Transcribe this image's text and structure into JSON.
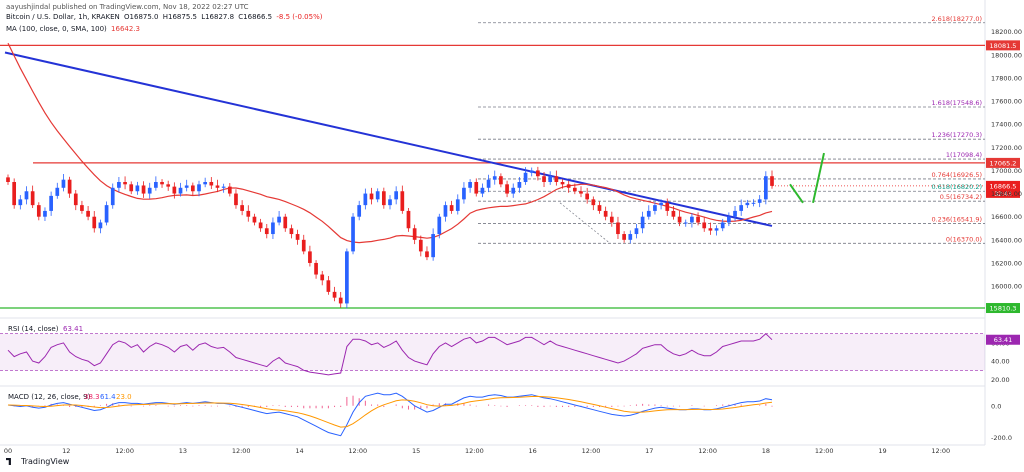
{
  "header": {
    "published": "aayushjindal published on TradingView.com, Nov 18, 2022 02:27 UTC",
    "symbol": "Bitcoin / U.S. Dollar, 1h, KRAKEN",
    "ohlc": {
      "o": "O16875.0",
      "h": "H16875.5",
      "l": "L16827.8",
      "c": "C16866.5",
      "chg": "-8.5 (-0.05%)"
    },
    "ma_label": "MA (100, close, 0, SMA, 100)",
    "ma_value": "16642.3"
  },
  "rsi": {
    "label": "RSI (14, close)",
    "value": "63.41",
    "ticks": [
      "60.00",
      "40.00",
      "20.00"
    ]
  },
  "macd": {
    "label": "MACD (12, 26, close, 9)",
    "values": [
      "38.3",
      "61.4",
      "23.0"
    ],
    "ticks": [
      "0.0",
      "-200.0"
    ]
  },
  "footer": {
    "brand": "TradingView"
  },
  "colors": {
    "up": "#2962ff",
    "down": "#e91e1e",
    "ma": "#e53935",
    "trend": "#2433d6",
    "green": "#2eb82e",
    "rsi": "#9c27b0",
    "macd": "#2962ff",
    "signal": "#ff9800"
  },
  "chart_data": {
    "type": "candlestick",
    "y_ticks": [
      "18200.00",
      "18000.00",
      "17800.00",
      "17600.00",
      "17400.00",
      "17200.00",
      "17000.00",
      "16800.00",
      "16600.00",
      "16400.00",
      "16200.00",
      "16000.00"
    ],
    "x_ticks": [
      "00",
      "12",
      "12:00",
      "13",
      "12:00",
      "14",
      "12:00",
      "15",
      "12:00",
      "16",
      "12:00",
      "17",
      "12:00",
      "18",
      "12:00",
      "19",
      "12:00"
    ],
    "horizontal_lines": [
      {
        "value": 18081.5,
        "label": "18081.5",
        "color": "#e53935"
      },
      {
        "value": 17065.2,
        "label": "17065.2",
        "color": "#e53935"
      },
      {
        "value": 15810.3,
        "label": "15810.3",
        "color": "#2eb82e"
      }
    ],
    "last_price": {
      "value": 16866.5,
      "label": "16866.5",
      "countdown": "32:43"
    },
    "fib_levels": [
      {
        "ratio": "2.618",
        "price": "18277.0",
        "value": 18277.0
      },
      {
        "ratio": "1.618",
        "price": "17548.6",
        "value": 17548.6
      },
      {
        "ratio": "1.236",
        "price": "17270.3",
        "value": 17270.3
      },
      {
        "ratio": "1",
        "price": "17098.4",
        "value": 17098.4
      },
      {
        "ratio": "0.764",
        "price": "16926.5",
        "value": 16926.5
      },
      {
        "ratio": "0.618",
        "price": "16820.2",
        "value": 16820.2
      },
      {
        "ratio": "0.5",
        "price": "16734.2",
        "value": 16734.2
      },
      {
        "ratio": "0.236",
        "price": "16541.9",
        "value": 16541.9
      },
      {
        "ratio": "0",
        "price": "16370.0",
        "value": 16370.0
      }
    ],
    "candles_close": [
      16900,
      16700,
      16750,
      16820,
      16700,
      16600,
      16650,
      16780,
      16850,
      16920,
      16800,
      16700,
      16650,
      16600,
      16500,
      16550,
      16700,
      16850,
      16900,
      16880,
      16820,
      16870,
      16800,
      16850,
      16900,
      16880,
      16860,
      16800,
      16850,
      16870,
      16820,
      16880,
      16900,
      16870,
      16850,
      16860,
      16800,
      16700,
      16650,
      16600,
      16550,
      16500,
      16450,
      16550,
      16600,
      16500,
      16450,
      16400,
      16300,
      16200,
      16100,
      16050,
      15950,
      15900,
      15850,
      16300,
      16600,
      16700,
      16800,
      16750,
      16820,
      16700,
      16750,
      16820,
      16650,
      16500,
      16400,
      16300,
      16250,
      16450,
      16600,
      16700,
      16650,
      16750,
      16850,
      16900,
      16800,
      16850,
      16920,
      16950,
      16880,
      16800,
      16850,
      16900,
      16980,
      17000,
      16950,
      16900,
      16950,
      16900,
      16880,
      16850,
      16820,
      16800,
      16750,
      16700,
      16650,
      16600,
      16550,
      16450,
      16400,
      16450,
      16500,
      16600,
      16650,
      16700,
      16720,
      16650,
      16600,
      16550,
      16550,
      16600,
      16550,
      16500,
      16480,
      16500,
      16550,
      16600,
      16650,
      16700,
      16720,
      16720,
      16750,
      16950,
      16866.5
    ],
    "projection": [
      {
        "from": 16900,
        "to": 16720
      },
      {
        "from": 16720,
        "to": 17150
      }
    ],
    "rsi_values": [
      52,
      45,
      48,
      50,
      40,
      38,
      45,
      55,
      58,
      60,
      50,
      45,
      42,
      40,
      35,
      38,
      48,
      58,
      62,
      60,
      55,
      58,
      50,
      56,
      60,
      58,
      55,
      50,
      56,
      58,
      52,
      58,
      60,
      56,
      54,
      55,
      50,
      44,
      42,
      40,
      38,
      36,
      34,
      40,
      44,
      38,
      36,
      34,
      30,
      28,
      27,
      26,
      25,
      26,
      27,
      56,
      64,
      64,
      62,
      58,
      60,
      55,
      58,
      62,
      52,
      44,
      40,
      38,
      36,
      48,
      56,
      60,
      56,
      60,
      64,
      66,
      60,
      62,
      66,
      66,
      62,
      58,
      60,
      62,
      66,
      66,
      62,
      58,
      62,
      58,
      56,
      54,
      52,
      50,
      48,
      46,
      44,
      42,
      40,
      38,
      40,
      44,
      48,
      54,
      56,
      58,
      58,
      52,
      48,
      46,
      48,
      52,
      48,
      46,
      46,
      50,
      56,
      58,
      60,
      62,
      62,
      62,
      64,
      70,
      63.41
    ],
    "macd_values": [
      5,
      0,
      -5,
      0,
      -10,
      -15,
      -10,
      5,
      15,
      20,
      10,
      0,
      -10,
      -20,
      -30,
      -25,
      -10,
      10,
      20,
      20,
      15,
      15,
      10,
      15,
      20,
      20,
      15,
      10,
      15,
      20,
      15,
      20,
      25,
      20,
      15,
      15,
      10,
      0,
      -10,
      -20,
      -30,
      -40,
      -50,
      -45,
      -40,
      -50,
      -60,
      -70,
      -90,
      -110,
      -130,
      -150,
      -170,
      -180,
      -190,
      -120,
      -40,
      20,
      60,
      70,
      80,
      70,
      70,
      80,
      60,
      30,
      0,
      -20,
      -40,
      -30,
      -10,
      10,
      10,
      30,
      50,
      60,
      55,
      55,
      65,
      70,
      65,
      55,
      55,
      60,
      65,
      70,
      60,
      50,
      45,
      35,
      25,
      15,
      5,
      -5,
      -15,
      -25,
      -35,
      -45,
      -55,
      -60,
      -65,
      -60,
      -50,
      -35,
      -25,
      -15,
      -10,
      -15,
      -20,
      -25,
      -25,
      -20,
      -20,
      -25,
      -25,
      -20,
      -10,
      0,
      10,
      20,
      25,
      25,
      30,
      45,
      38.3
    ]
  }
}
